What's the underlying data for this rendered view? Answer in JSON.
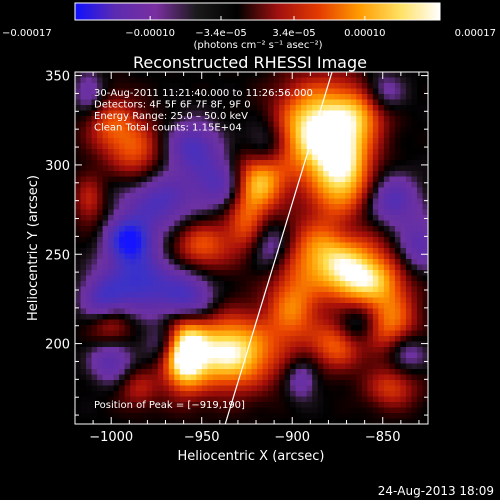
{
  "chart_data": {
    "type": "heatmap",
    "title": "Reconstructed RHESSI Image",
    "xlabel": "Heliocentric X (arcsec)",
    "ylabel": "Heliocentric Y (arcsec)",
    "xlim": [
      -1020,
      -825
    ],
    "ylim": [
      155,
      352
    ],
    "x_ticks": [
      -1000,
      -950,
      -900,
      -850
    ],
    "x_tick_labels": [
      "−1000",
      "−950",
      "−900",
      "−850"
    ],
    "y_ticks": [
      200,
      250,
      300,
      350
    ],
    "y_tick_labels": [
      "200",
      "250",
      "300",
      "350"
    ],
    "colorbar": {
      "min": -0.00017,
      "max": 0.00017,
      "ticks": [
        -0.00017,
        -0.0001,
        -3.4e-05,
        3.4e-05,
        0.0001,
        0.00017
      ],
      "tick_labels": [
        "−0.00017",
        "−0.00010",
        "−3.4e−05",
        "3.4e−05",
        "0.00010",
        "0.00017"
      ],
      "units_label": "(photons cm⁻² s⁻¹ asec⁻²)",
      "colors": [
        "#1010ff",
        "#5c2bb0",
        "#7a2fa0",
        "#1a1a1a",
        "#000000",
        "#a01010",
        "#e33a00",
        "#ff9a00",
        "#ffe060",
        "#ffffff"
      ]
    },
    "annotations": [
      "30‑Aug‑2011 11:21:40.000 to 11:26:56.000",
      "Detectors: 4F 5F 6F 7F 8F, 9F 0",
      "Energy Range: 25.0 – 50.0 keV",
      "Clean    Total counts: 1.15E+04"
    ],
    "peak_label": "Position of Peak = [−919,190]",
    "peak_position": [
      -919,
      190
    ],
    "limb_line": [
      [
        -937,
        155
      ],
      [
        -878,
        352
      ]
    ],
    "hotspots": [
      [
        -960,
        195,
        8,
        14,
        1.0
      ],
      [
        -935,
        195,
        18,
        14,
        1.0
      ],
      [
        -890,
        320,
        14,
        18,
        0.85
      ],
      [
        -872,
        300,
        12,
        25,
        0.9
      ],
      [
        -878,
        250,
        18,
        14,
        0.75
      ],
      [
        -860,
        235,
        14,
        10,
        0.7
      ],
      [
        -900,
        220,
        10,
        14,
        0.55
      ],
      [
        -875,
        200,
        10,
        10,
        0.55
      ],
      [
        -845,
        210,
        10,
        14,
        0.6
      ],
      [
        -918,
        292,
        10,
        12,
        0.8
      ],
      [
        -1000,
        322,
        10,
        12,
        0.45
      ],
      [
        -985,
        305,
        10,
        14,
        0.45
      ],
      [
        -950,
        255,
        12,
        10,
        0.5
      ],
      [
        -925,
        268,
        8,
        12,
        0.45
      ],
      [
        -860,
        330,
        10,
        10,
        0.4
      ],
      [
        -1000,
        210,
        8,
        8,
        0.35
      ],
      [
        -1012,
        280,
        6,
        10,
        0.35
      ],
      [
        -845,
        175,
        10,
        8,
        0.4
      ],
      [
        -985,
        175,
        8,
        8,
        0.3
      ],
      [
        -990,
        258,
        8,
        8,
        -0.95
      ],
      [
        -985,
        235,
        14,
        12,
        -0.7
      ],
      [
        -975,
        280,
        14,
        12,
        -0.6
      ],
      [
        -955,
        310,
        10,
        10,
        -0.55
      ],
      [
        -940,
        290,
        10,
        10,
        -0.5
      ],
      [
        -958,
        225,
        10,
        10,
        -0.6
      ],
      [
        -1005,
        225,
        8,
        8,
        -0.45
      ],
      [
        -1000,
        190,
        8,
        8,
        -0.45
      ],
      [
        -970,
        200,
        8,
        8,
        -0.4
      ],
      [
        -912,
        255,
        8,
        10,
        -0.4
      ],
      [
        -915,
        310,
        8,
        10,
        -0.4
      ],
      [
        -845,
        280,
        10,
        10,
        -0.55
      ],
      [
        -830,
        255,
        8,
        10,
        -0.45
      ],
      [
        -865,
        210,
        8,
        8,
        -0.35
      ],
      [
        -838,
        195,
        8,
        8,
        -0.45
      ],
      [
        -870,
        265,
        10,
        10,
        -0.4
      ],
      [
        -850,
        340,
        8,
        8,
        -0.35
      ],
      [
        -895,
        180,
        6,
        8,
        -0.35
      ],
      [
        -1012,
        340,
        6,
        8,
        -0.35
      ]
    ]
  },
  "footer": {
    "timestamp": "24‑Aug‑2013 18:09"
  }
}
